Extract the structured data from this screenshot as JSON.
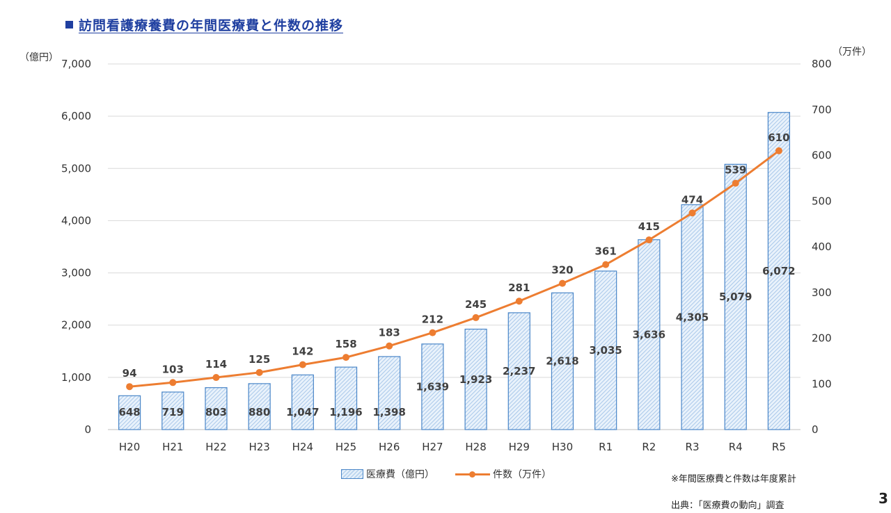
{
  "page": {
    "title": "訪問看護療養費の年間医療費と件数の推移",
    "note": "※年間医療費と件数は年度累計",
    "source": "出典：「医療費の動向」調査",
    "page_number": "3"
  },
  "chart_data": {
    "type": "bar",
    "title": "訪問看護療養費の年間医療費と件数の推移",
    "categories": [
      "H20",
      "H21",
      "H22",
      "H23",
      "H24",
      "H25",
      "H26",
      "H27",
      "H28",
      "H29",
      "H30",
      "R1",
      "R2",
      "R3",
      "R4",
      "R5"
    ],
    "y_left": {
      "unit": "（億円）",
      "ylim": [
        0,
        7000
      ],
      "ticks": [
        "0",
        "1,000",
        "2,000",
        "3,000",
        "4,000",
        "5,000",
        "6,000",
        "7,000"
      ]
    },
    "y_right": {
      "unit": "（万件）",
      "ylim": [
        0,
        800
      ],
      "ticks": [
        "0",
        "100",
        "200",
        "300",
        "400",
        "500",
        "600",
        "700",
        "800"
      ]
    },
    "grid": true,
    "legend_position": "bottom",
    "series": [
      {
        "name": "医療費（億円）",
        "type": "bar",
        "axis": "left",
        "color": "#4a86c8",
        "values": [
          648,
          719,
          803,
          880,
          1047,
          1196,
          1398,
          1639,
          1923,
          2237,
          2618,
          3035,
          3636,
          4305,
          5079,
          6072
        ],
        "labels": [
          "648",
          "719",
          "803",
          "880",
          "1,047",
          "1,196",
          "1,398",
          "1,639",
          "1,923",
          "2,237",
          "2,618",
          "3,035",
          "3,636",
          "4,305",
          "5,079",
          "6,072"
        ]
      },
      {
        "name": "件数（万件）",
        "type": "line",
        "axis": "right",
        "color": "#ed7d31",
        "values": [
          94,
          103,
          114,
          125,
          142,
          158,
          183,
          212,
          245,
          281,
          320,
          361,
          415,
          474,
          539,
          610
        ],
        "labels": [
          "94",
          "103",
          "114",
          "125",
          "142",
          "158",
          "183",
          "212",
          "245",
          "281",
          "320",
          "361",
          "415",
          "474",
          "539",
          "610"
        ]
      }
    ]
  }
}
